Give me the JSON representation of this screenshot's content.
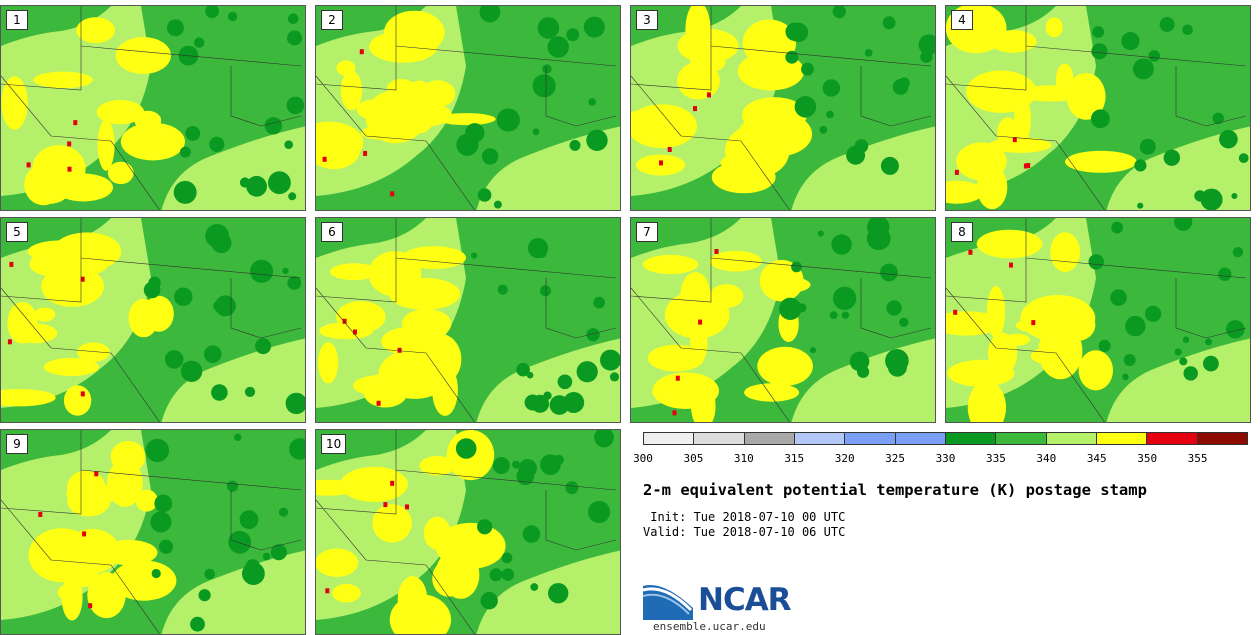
{
  "panels": [
    "1",
    "2",
    "3",
    "4",
    "5",
    "6",
    "7",
    "8",
    "9",
    "10"
  ],
  "colorbar": {
    "colors": [
      "#efefef",
      "#dcdcdc",
      "#a9a9a9",
      "#b4c8f8",
      "#7b9ef6",
      "#7b9ef6",
      "#0a9a21",
      "#3cb93c",
      "#b5f06a",
      "#ffff14",
      "#e4000e",
      "#8c0a00"
    ],
    "ticks": [
      "300",
      "305",
      "310",
      "315",
      "320",
      "325",
      "330",
      "335",
      "340",
      "345",
      "350",
      "355"
    ]
  },
  "title": "2-m equivalent potential temperature (K) postage stamp",
  "init": " Init: Tue 2018-07-10 00 UTC",
  "valid": "Valid: Tue 2018-07-10 06 UTC",
  "logo": {
    "text": "NCAR",
    "url": "ensemble.ucar.edu"
  }
}
